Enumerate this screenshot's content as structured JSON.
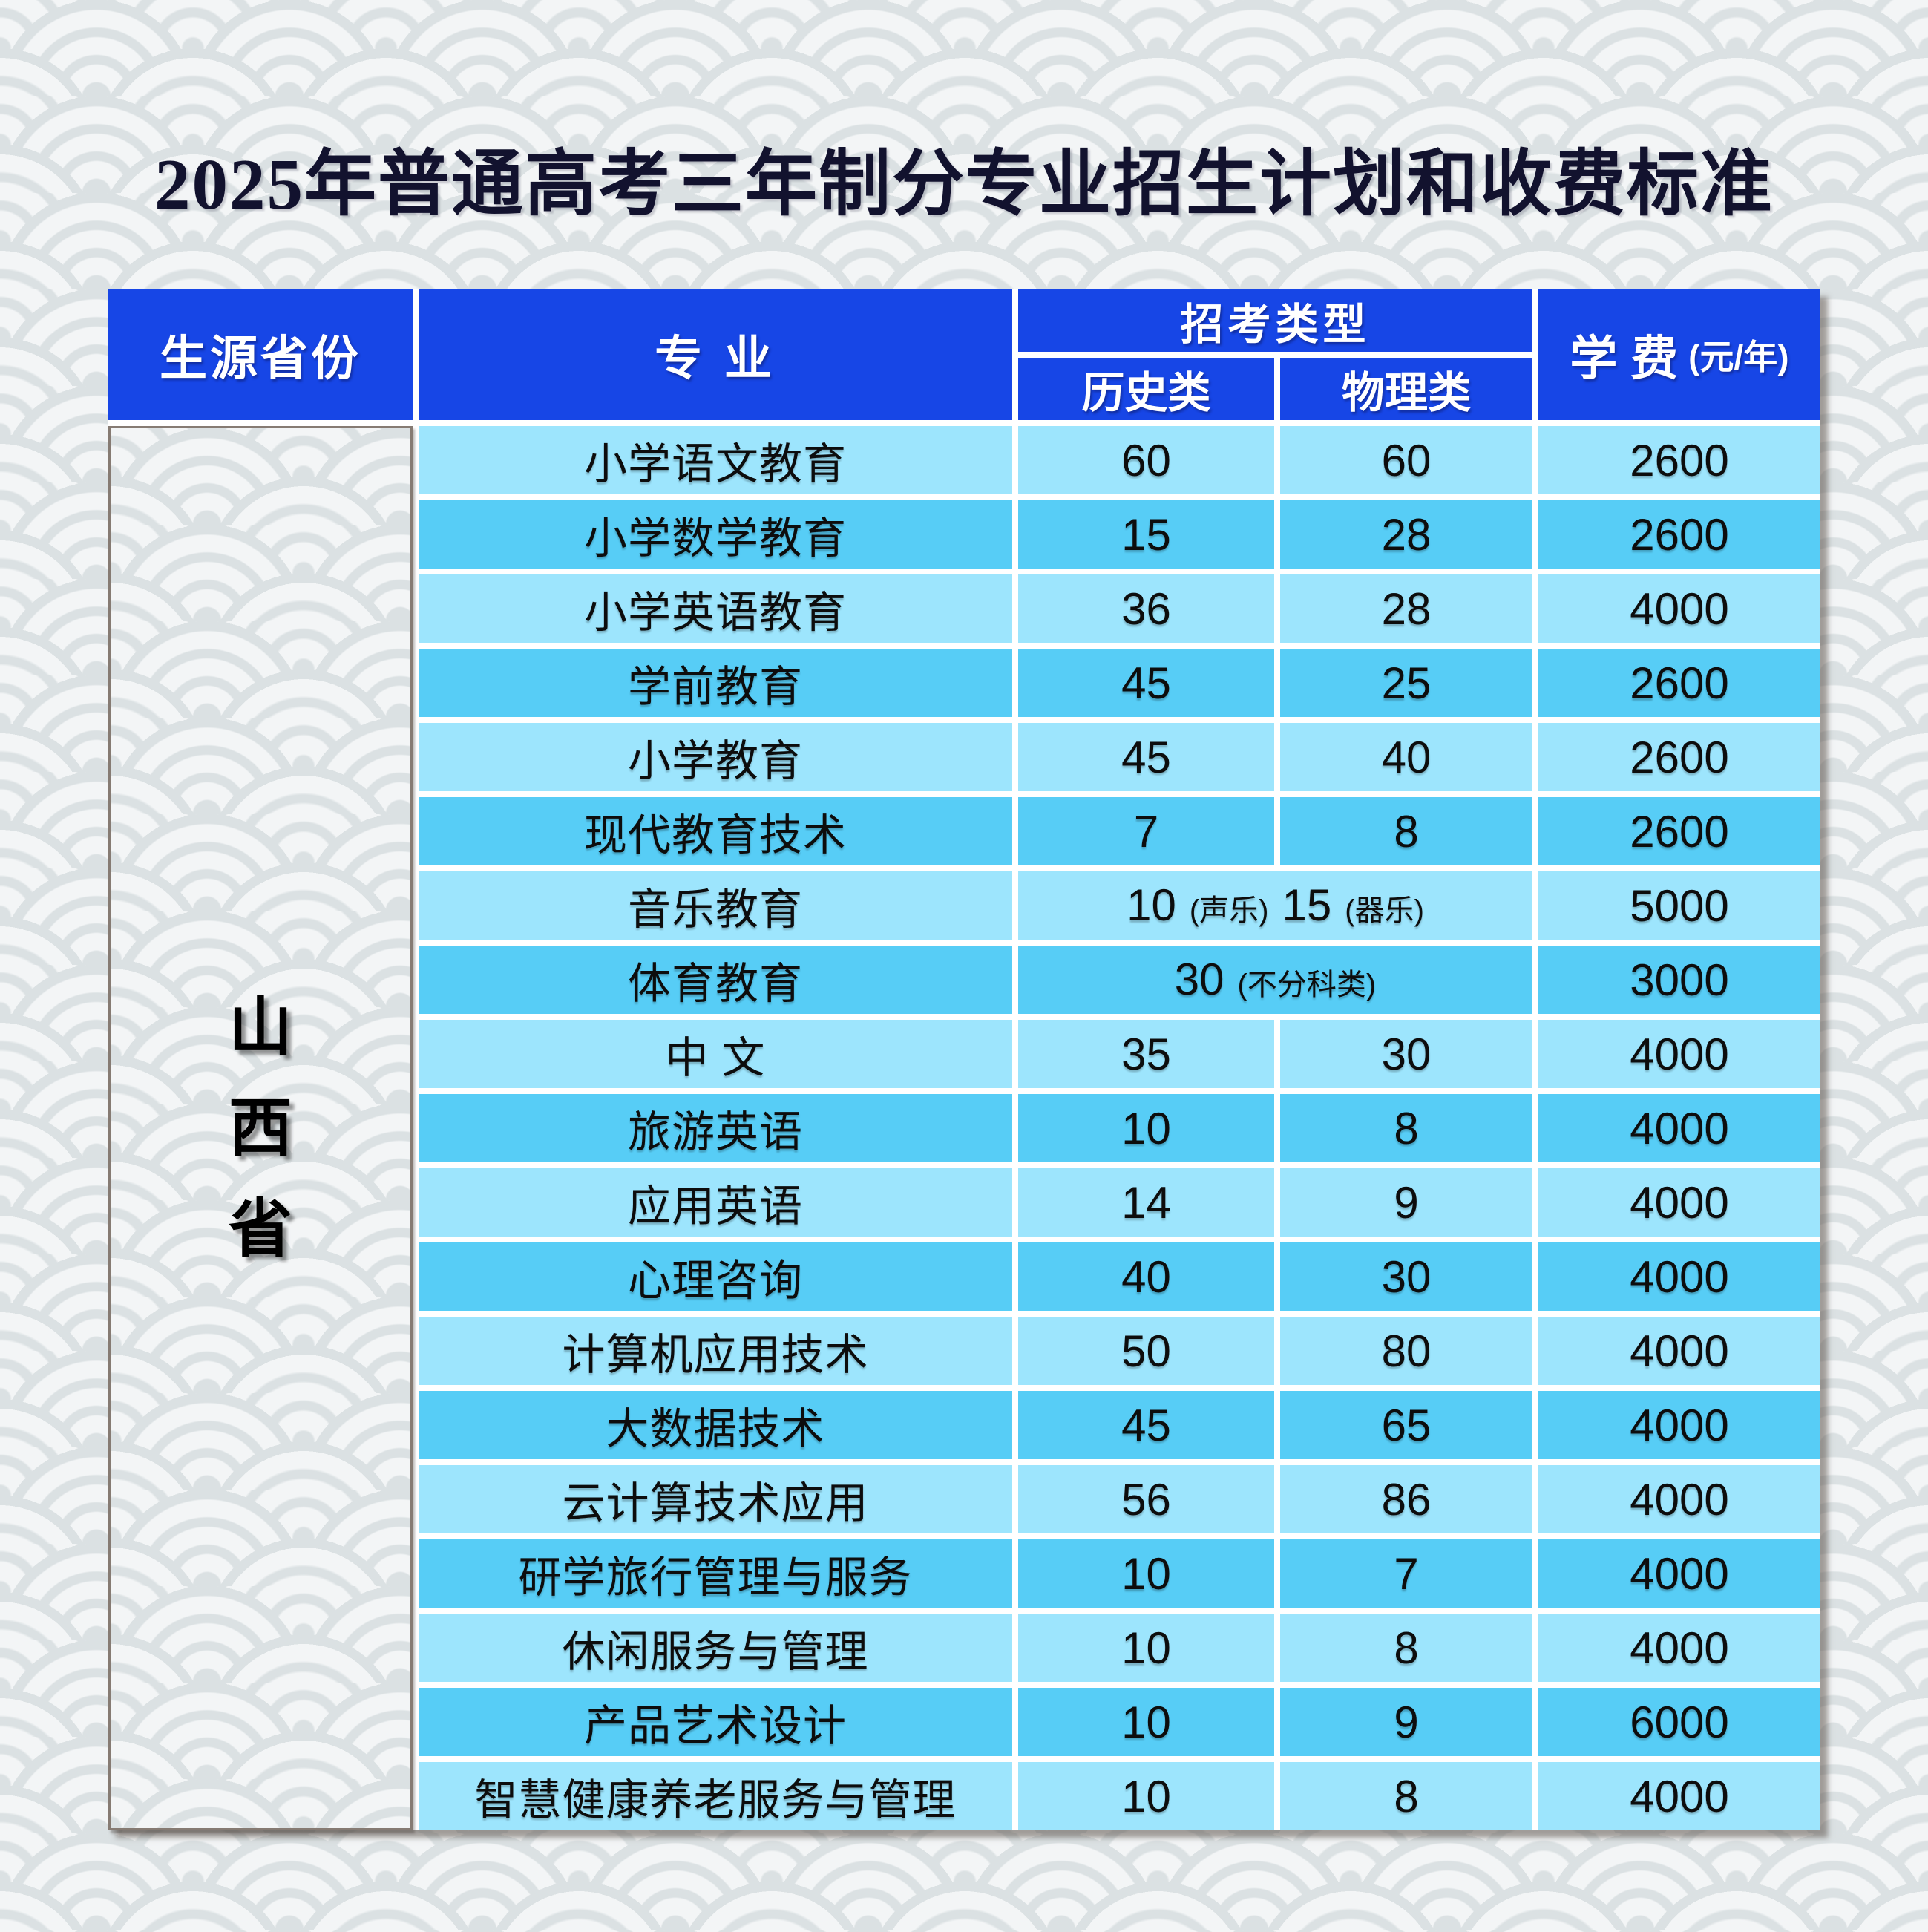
{
  "page": {
    "title": "2025年普通高考三年制分专业招生计划和收费标准"
  },
  "colors": {
    "header_blue": "#1746e6",
    "row_light": "#9de5fd",
    "row_dark": "#57cdf6",
    "title_navy": "#12122e",
    "pattern_line": "#dbe1e3",
    "pattern_base": "#f3f5f6",
    "divider_white": "#ffffff",
    "province_border": "#867b73"
  },
  "table": {
    "headers": {
      "province": "生源省份",
      "major": "专  业",
      "type_group": "招考类型",
      "type_history": "历史类",
      "type_physics": "物理类",
      "fee_main": "学 费",
      "fee_unit": "(元/年)"
    },
    "province": {
      "name": "山西省",
      "chars": [
        "山",
        "西",
        "省"
      ]
    },
    "rows": [
      {
        "major": "小学语文教育",
        "history": "60",
        "physics": "60",
        "fee": "2600"
      },
      {
        "major": "小学数学教育",
        "history": "15",
        "physics": "28",
        "fee": "2600"
      },
      {
        "major": "小学英语教育",
        "history": "36",
        "physics": "28",
        "fee": "4000"
      },
      {
        "major": "学前教育",
        "history": "45",
        "physics": "25",
        "fee": "2600"
      },
      {
        "major": "小学教育",
        "history": "45",
        "physics": "40",
        "fee": "2600"
      },
      {
        "major": "现代教育技术",
        "history": "7",
        "physics": "8",
        "fee": "2600"
      },
      {
        "major": "音乐教育",
        "merged": true,
        "segments": [
          {
            "num": "10",
            "note": "(声乐)"
          },
          {
            "num": "15",
            "note": "(器乐)"
          }
        ],
        "fee": "5000"
      },
      {
        "major": "体育教育",
        "merged": true,
        "segments": [
          {
            "num": "30",
            "note": "(不分科类)"
          }
        ],
        "fee": "3000"
      },
      {
        "major": "中 文",
        "history": "35",
        "physics": "30",
        "fee": "4000"
      },
      {
        "major": "旅游英语",
        "history": "10",
        "physics": "8",
        "fee": "4000"
      },
      {
        "major": "应用英语",
        "history": "14",
        "physics": "9",
        "fee": "4000"
      },
      {
        "major": "心理咨询",
        "history": "40",
        "physics": "30",
        "fee": "4000"
      },
      {
        "major": "计算机应用技术",
        "history": "50",
        "physics": "80",
        "fee": "4000"
      },
      {
        "major": "大数据技术",
        "history": "45",
        "physics": "65",
        "fee": "4000"
      },
      {
        "major": "云计算技术应用",
        "history": "56",
        "physics": "86",
        "fee": "4000"
      },
      {
        "major": "研学旅行管理与服务",
        "history": "10",
        "physics": "7",
        "fee": "4000"
      },
      {
        "major": "休闲服务与管理",
        "history": "10",
        "physics": "8",
        "fee": "4000"
      },
      {
        "major": "产品艺术设计",
        "history": "10",
        "physics": "9",
        "fee": "6000"
      },
      {
        "major": "智慧健康养老服务与管理",
        "history": "10",
        "physics": "8",
        "fee": "4000"
      }
    ]
  }
}
